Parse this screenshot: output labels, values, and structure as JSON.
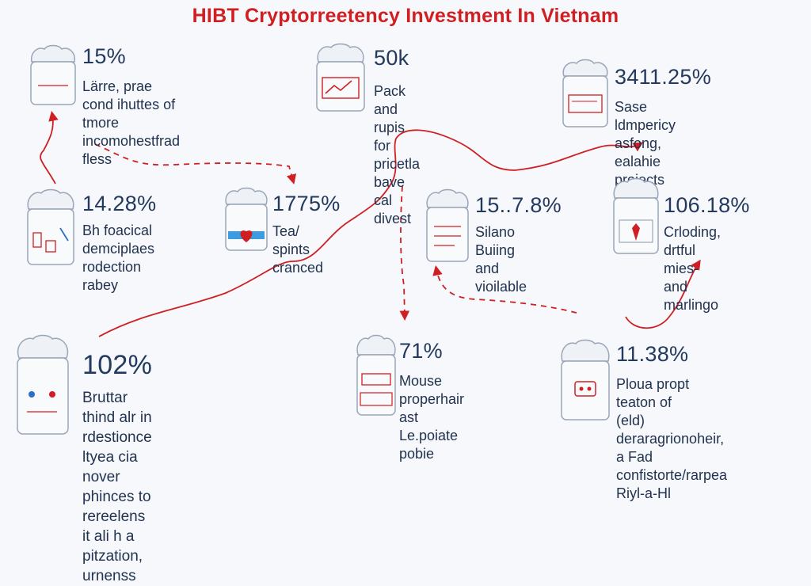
{
  "title": "HIBT Cryptorreetency Investment In Vietnam",
  "colors": {
    "accent": "#d01f23",
    "text": "#24395e",
    "background": "#f6f8fb"
  },
  "items": [
    {
      "icon": "bag-icon",
      "stat": "15%",
      "desc": "Lärre, prae cond ihuttes of\ntmore incomohestfrad fless"
    },
    {
      "icon": "chart-bag-icon",
      "stat": "50k",
      "desc": "Pack and rupis for\npricetla bave cal divest"
    },
    {
      "icon": "document-bag-icon",
      "stat": "3411.25%",
      "desc": "Sase ldmpericy\nasfong, ealahie projects"
    },
    {
      "icon": "tools-bag-icon",
      "stat": "14.28%",
      "desc": "Bh foacical\ndemciplaes\nrodection rabey"
    },
    {
      "icon": "heart-bag-icon",
      "stat": "1775%",
      "desc": "Tea/ spints\ncranced"
    },
    {
      "icon": "receipt-bag-icon",
      "stat": "15..7.8%",
      "desc": "Silano Buiing and\nvioilable"
    },
    {
      "icon": "tie-bag-icon",
      "stat": "106.18%",
      "desc": "Crloding, drtful\nmies-and marlingo"
    },
    {
      "icon": "people-bag-icon",
      "stat": "102%",
      "desc": "Bruttar thind alr in rdestionce\nltyea cia nover phinces to\nrereelens it ali h a pitzation, urnenss"
    },
    {
      "icon": "box-bag-icon",
      "stat": "71%",
      "desc": "Mouse\nproperhair\nast Le.poiate\npobie"
    },
    {
      "icon": "robot-bag-icon",
      "stat": "11.38%",
      "desc": "Ploua propt teaton of\n(eld) deraragrionoheir,\na Fad confistorte/rarpea\nRiyl-a-Hl"
    }
  ]
}
